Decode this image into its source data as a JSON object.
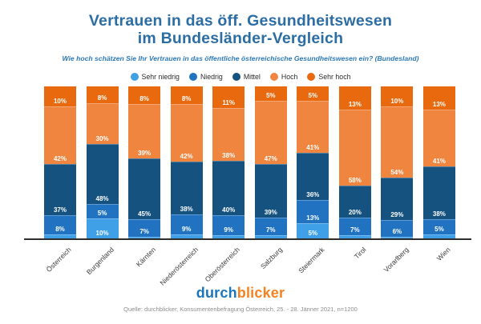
{
  "title": {
    "line1": "Vertrauen in das öff. Gesundheitswesen",
    "line2": "im Bundesländer-Vergleich"
  },
  "subtitle": "Wie hoch schätzen Sie Ihr Vertrauen in das öffentliche österreichische Gesundheitswesen ein? (Bundesland)",
  "legend": [
    {
      "label": "Sehr niedrig",
      "color": "#3fa0e8"
    },
    {
      "label": "Niedrig",
      "color": "#2173c2"
    },
    {
      "label": "Mittel",
      "color": "#16527f"
    },
    {
      "label": "Hoch",
      "color": "#f0853f"
    },
    {
      "label": "Sehr hoch",
      "color": "#e8690e"
    }
  ],
  "chart_data": {
    "type": "bar",
    "stacked": true,
    "title": "Vertrauen in das öff. Gesundheitswesen im Bundesländer-Vergleich",
    "xlabel": "",
    "ylabel": "",
    "ylim": [
      0,
      100
    ],
    "grid": false,
    "legend_position": "top",
    "unit": "%",
    "categories": [
      "Österreich",
      "Burgenland",
      "Kärnten",
      "Niederösterreich",
      "Oberösterreich",
      "Salzburg",
      "Steiermark",
      "Tirol",
      "Vorarlberg",
      "Wien"
    ],
    "series": [
      {
        "name": "Sehr niedrig",
        "color": "#3fa0e8",
        "values": [
          3,
          10,
          1,
          3,
          2,
          2,
          5,
          2,
          1,
          3
        ],
        "labels": [
          "",
          "10%",
          "",
          "",
          "",
          "",
          "5%",
          "",
          "",
          ""
        ]
      },
      {
        "name": "Niedrig",
        "color": "#2173c2",
        "values": [
          8,
          5,
          7,
          9,
          9,
          7,
          13,
          7,
          6,
          5
        ],
        "labels": [
          "8%",
          "5%",
          "7%",
          "9%",
          "9%",
          "7%",
          "13%",
          "7%",
          "6%",
          "5%"
        ]
      },
      {
        "name": "Mittel",
        "color": "#16527f",
        "values": [
          37,
          48,
          45,
          38,
          40,
          39,
          36,
          20,
          29,
          38
        ],
        "labels": [
          "37%",
          "48%",
          "45%",
          "38%",
          "40%",
          "39%",
          "36%",
          "20%",
          "29%",
          "38%"
        ]
      },
      {
        "name": "Hoch",
        "color": "#f0853f",
        "values": [
          42,
          30,
          39,
          42,
          38,
          47,
          41,
          58,
          54,
          41
        ],
        "labels": [
          "42%",
          "30%",
          "39%",
          "42%",
          "38%",
          "47%",
          "41%",
          "58%",
          "54%",
          "41%"
        ]
      },
      {
        "name": "Sehr hoch",
        "color": "#e8690e",
        "values": [
          10,
          8,
          8,
          8,
          11,
          5,
          5,
          13,
          10,
          13
        ],
        "labels": [
          "10%",
          "8%",
          "8%",
          "8%",
          "11%",
          "5%",
          "5%",
          "13%",
          "10%",
          "13%"
        ]
      }
    ]
  },
  "footer": {
    "logo_part1": "durch",
    "logo_part2": "blicker",
    "source": "Quelle: durchblicker, Konsumentenbefragung Österreich, 25. - 28. Jänner 2021, n=1200"
  }
}
